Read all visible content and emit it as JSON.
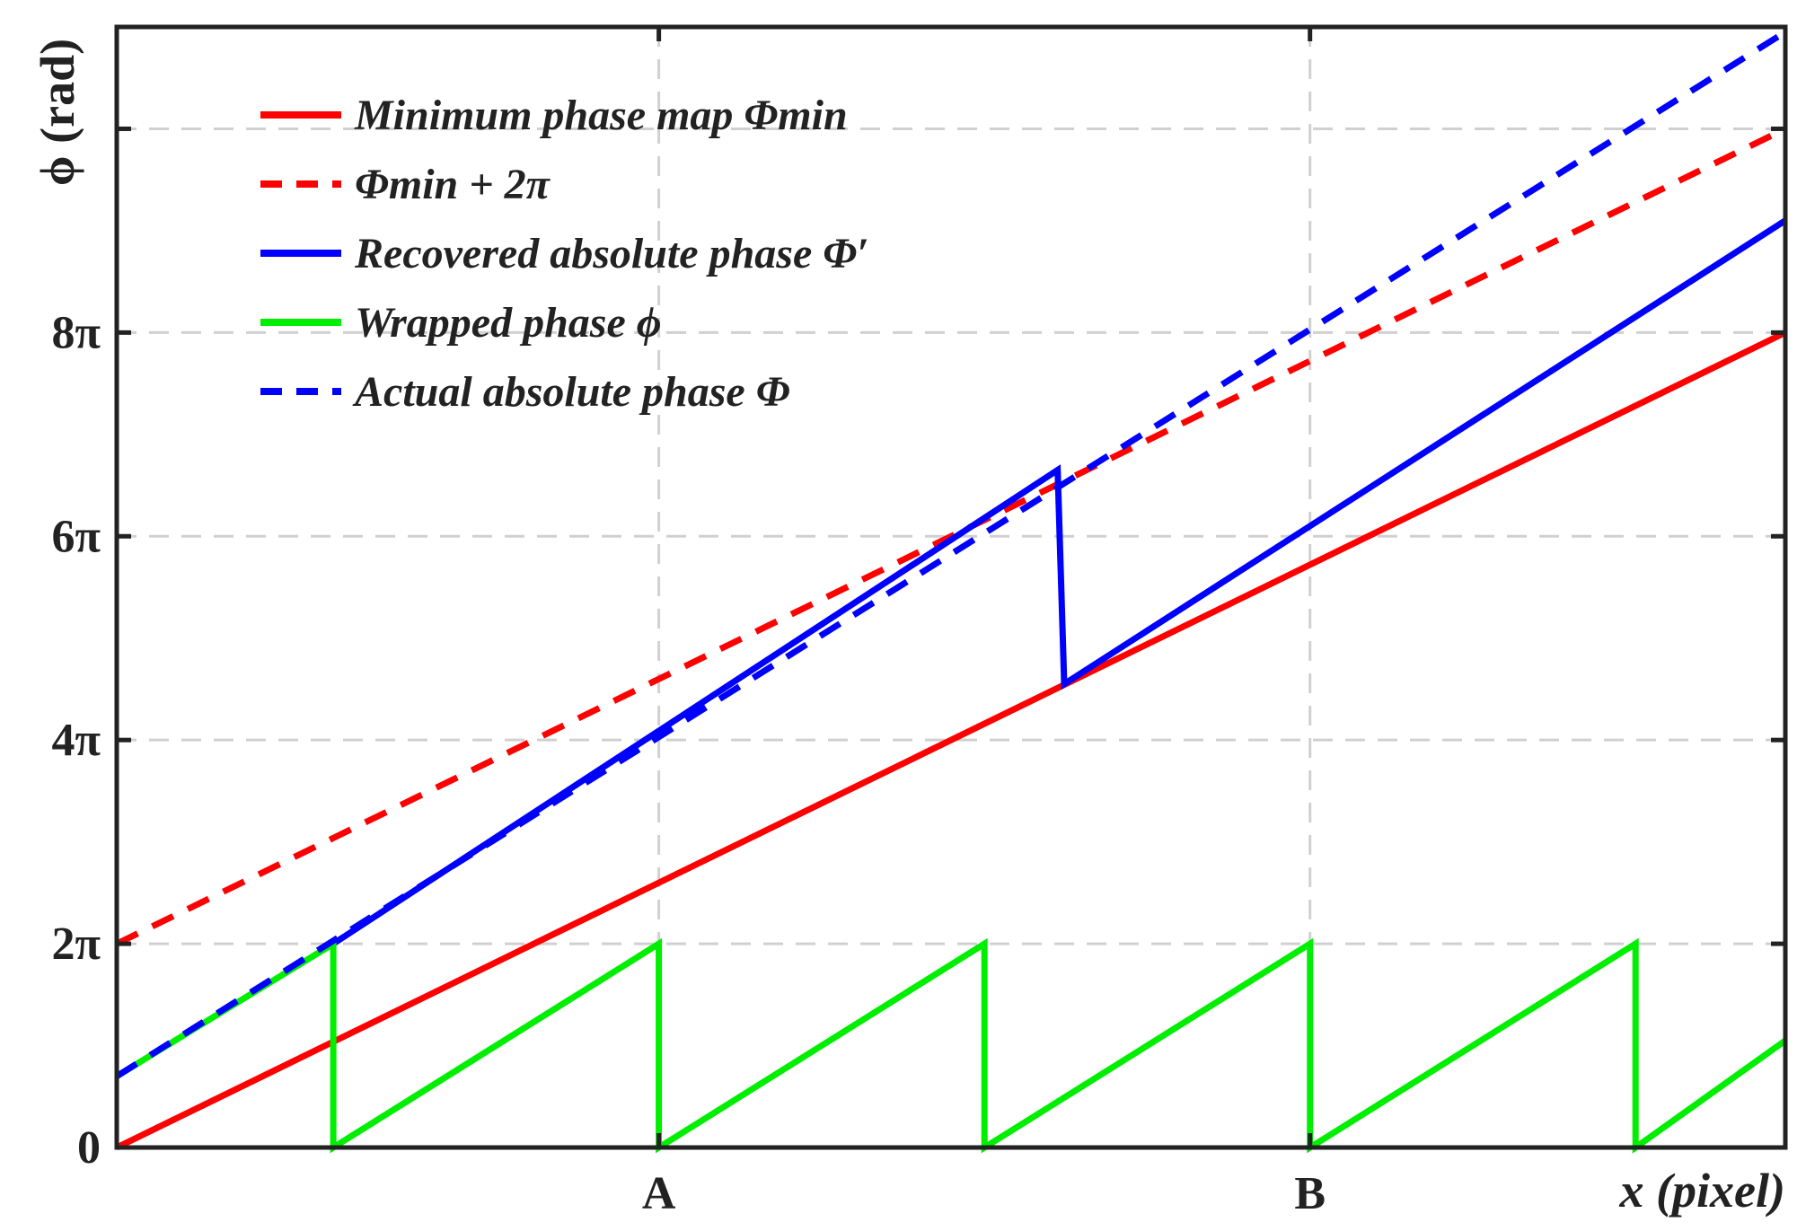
{
  "chart_data": {
    "type": "line",
    "xlabel": "x (pixel)",
    "ylabel": "ϕ (rad)",
    "xlim": [
      0,
      10.25
    ],
    "ylim": [
      0,
      22
    ],
    "grid": true,
    "legend_position": "top-left",
    "x_ticks": [
      {
        "value": 3.33,
        "label": "A"
      },
      {
        "value": 7.33,
        "label": "B"
      }
    ],
    "y_ticks": [
      {
        "value": 0,
        "label": "0"
      },
      {
        "value": 4,
        "label": "2π"
      },
      {
        "value": 8,
        "label": "4π"
      },
      {
        "value": 12,
        "label": "6π"
      },
      {
        "value": 16,
        "label": "8π"
      },
      {
        "value": 20,
        "label": ""
      }
    ],
    "series": [
      {
        "name": "Minimum phase map Φmin",
        "color": "#ff0000",
        "dash": "solid",
        "x": [
          0,
          10.25
        ],
        "y": [
          0,
          16
        ]
      },
      {
        "name": "Φmin + 2π",
        "color": "#ff0000",
        "dash": "dashed",
        "x": [
          0,
          10.25
        ],
        "y": [
          4,
          20
        ]
      },
      {
        "name": "Recovered absolute phase Φ′",
        "color": "#0000ff",
        "dash": "solid",
        "x": [
          1.33,
          5.78,
          5.82,
          10.25
        ],
        "y": [
          4,
          13.3,
          9.1,
          18.2
        ]
      },
      {
        "name": "Wrapped phase ϕ",
        "color": "#00ee00",
        "dash": "solid",
        "x": [
          0,
          1.33,
          1.33,
          3.33,
          3.33,
          5.33,
          5.33,
          7.33,
          7.33,
          9.33,
          9.33,
          10.25
        ],
        "y": [
          1.4,
          4,
          0,
          4,
          0,
          4,
          0,
          4,
          0,
          4,
          0,
          2.1
        ]
      },
      {
        "name": "Actual absolute phase Φ",
        "color": "#0000ff",
        "dash": "dashed",
        "x": [
          0,
          10.25
        ],
        "y": [
          1.4,
          21.9
        ]
      }
    ]
  }
}
